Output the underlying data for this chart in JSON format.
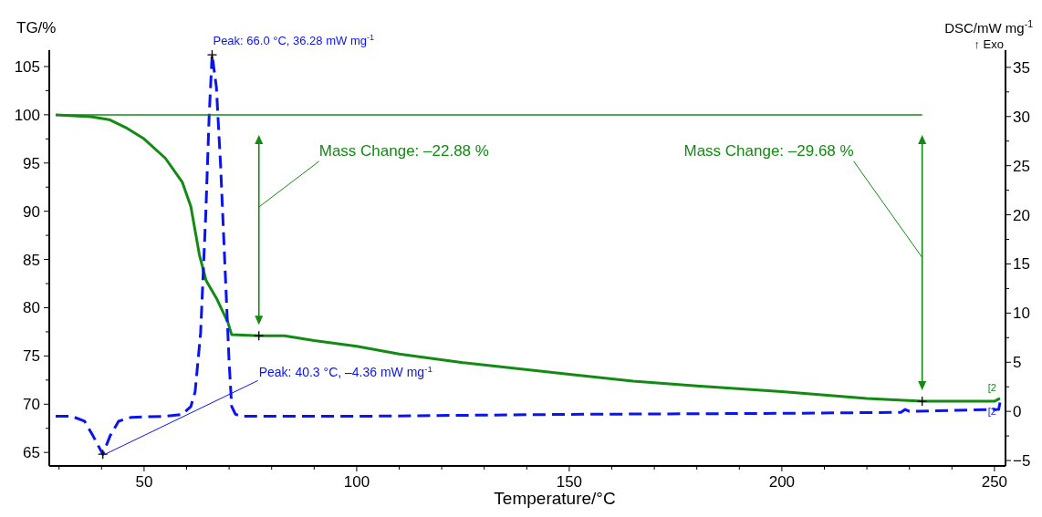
{
  "chart_data": {
    "type": "line",
    "xlabel": "Temperature/°C",
    "ylabel": "TG/%",
    "y2label": "DSC/mW mg$^{-1}$",
    "xlim": [
      27.7,
      252.6
    ],
    "xticks": [
      {
        "value": 30,
        "label": null
      },
      {
        "value": 40,
        "label": null
      },
      50,
      {
        "value": 60,
        "label": null
      },
      {
        "value": 70,
        "label": null
      },
      {
        "value": 80,
        "label": null
      },
      {
        "value": 90,
        "label": null
      },
      100,
      {
        "value": 110,
        "label": null
      },
      {
        "value": 120,
        "label": null
      },
      {
        "value": 130,
        "label": null
      },
      {
        "value": 140,
        "label": null
      },
      150,
      {
        "value": 160,
        "label": null
      },
      {
        "value": 170,
        "label": null
      },
      {
        "value": 180,
        "label": null
      },
      {
        "value": 190,
        "label": null
      },
      200,
      {
        "value": 210,
        "label": null
      },
      {
        "value": 220,
        "label": null
      },
      {
        "value": 230,
        "label": null
      },
      {
        "value": 240,
        "label": null
      },
      250
    ],
    "ylim": [
      63.6,
      106.7
    ],
    "yticks": [
      65,
      {
        "value": 67.5,
        "label": null
      },
      70,
      {
        "value": 72.5,
        "label": null
      },
      75,
      {
        "value": 77.5,
        "label": null
      },
      80,
      {
        "value": 82.5,
        "label": null
      },
      85,
      {
        "value": 87.5,
        "label": null
      },
      90,
      {
        "value": 92.5,
        "label": null
      },
      95,
      {
        "value": 97.5,
        "label": null
      },
      100,
      {
        "value": 102.5,
        "label": null
      },
      105
    ],
    "y2lim": [
      -5.55,
      36.75
    ],
    "y2ticks": [
      {
        "value": -5,
        "label": "−5"
      },
      {
        "value": -2.5,
        "label": null
      },
      0,
      {
        "value": 2.5,
        "label": null
      },
      5,
      {
        "value": 7.5,
        "label": null
      },
      10,
      {
        "value": 12.5,
        "label": null
      },
      15,
      {
        "value": 17.5,
        "label": null
      },
      20,
      {
        "value": 22.5,
        "label": null
      },
      25,
      {
        "value": 27.5,
        "label": null
      },
      30,
      {
        "value": 32.5,
        "label": null
      },
      35
    ],
    "grid": false,
    "series": [
      {
        "name": "[2",
        "color": "#138a13",
        "line_style": "solid",
        "marker": "none",
        "x": [
          29.2,
          37.5,
          41.8,
          46,
          50,
          55,
          59,
          61,
          63,
          64.6,
          67,
          69.7,
          70.6,
          77,
          83,
          90,
          100,
          110,
          125,
          150,
          165,
          180,
          200,
          220,
          233,
          250,
          251.3
        ],
        "values": [
          100,
          99.8,
          99.5,
          98.6,
          97.5,
          95.5,
          93,
          90.5,
          85.5,
          82.8,
          81,
          78.5,
          77.2,
          77.1,
          77.1,
          76.6,
          76,
          75.2,
          74.3,
          73.1,
          72.4,
          71.9,
          71.3,
          70.6,
          70.3,
          70.3,
          70.6
        ]
      },
      {
        "name": "[2",
        "axis": "y2",
        "color": "#0a14f0",
        "line_style": "dashed",
        "marker": "none",
        "x": [
          29.2,
          33,
          36,
          38,
          40.3,
          42,
          44,
          47,
          55,
          59,
          61,
          62,
          63.3,
          64.5,
          65.3,
          66,
          67,
          68,
          69,
          70,
          70.6,
          71.5,
          73,
          100,
          150,
          200,
          228,
          229,
          230,
          240,
          251,
          251.3
        ],
        "values": [
          -0.5,
          -0.5,
          -1,
          -2.5,
          -4.36,
          -2.5,
          -1,
          -0.6,
          -0.5,
          -0.3,
          0.5,
          2,
          8,
          20,
          30,
          36.28,
          33,
          25,
          15,
          5,
          0.5,
          -0.3,
          -0.5,
          -0.5,
          -0.3,
          -0.2,
          -0.1,
          0.2,
          0,
          0.1,
          0.2,
          0.9
        ]
      },
      {
        "color": "#138a13",
        "line_style": "solid",
        "marker": "none",
        "x": [
          29.2,
          233
        ],
        "values": [
          100,
          100
        ]
      },
      {
        "type": "scatter",
        "color": "#000000",
        "marker": "cross",
        "x": [
          77,
          233
        ],
        "values": [
          77.1,
          70.3
        ]
      },
      {
        "type": "scatter",
        "axis": "y2",
        "color": "#000000",
        "marker": "cross",
        "x": [
          40.3,
          66.0
        ],
        "values": [
          -4.36,
          36.28
        ]
      }
    ],
    "annotations": [
      {
        "text": "Peak: 66.0 °C, 36.28 mW mg$^{-1}$",
        "x": 66.0,
        "y": 106.3
      },
      {
        "text": "Peak: 40.3 °C, –4.36 mW mg$^{-1}$",
        "x": 40.3,
        "y": 64.7
      },
      "Mass Change: –22.88 %",
      "Mass Change: –29.68 %",
      "↑ Exo"
    ]
  }
}
